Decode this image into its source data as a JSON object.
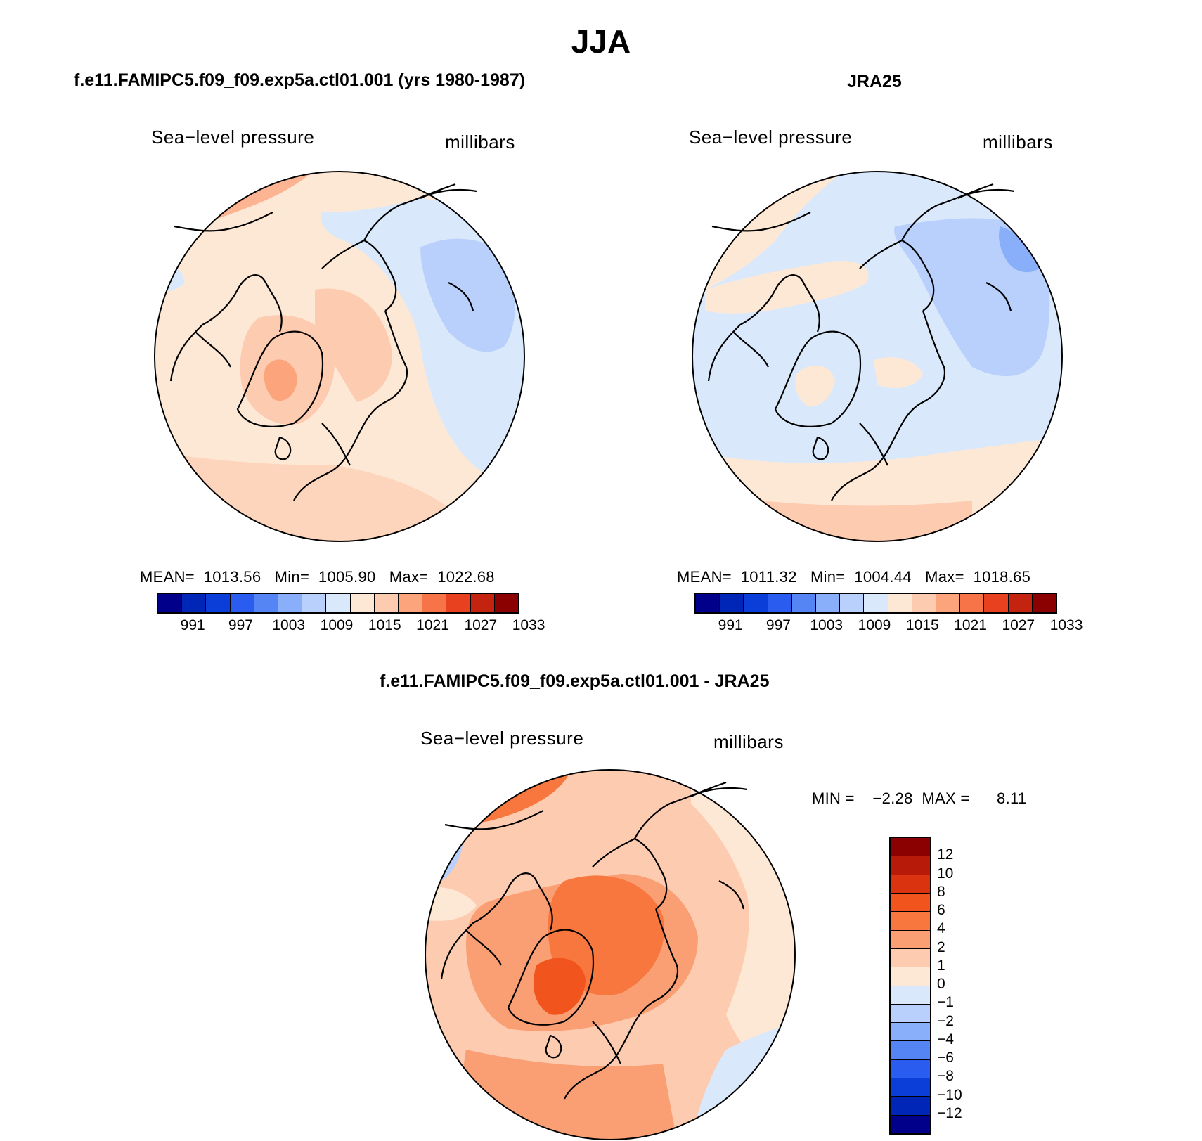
{
  "title": "JJA",
  "colors": {
    "abs_scale": [
      "#00008b",
      "#0026b8",
      "#0b3ed8",
      "#2a5cf0",
      "#5585f5",
      "#8aaffa",
      "#b8d0fb",
      "#d9e9fb",
      "#fde8d6",
      "#fdcbb0",
      "#fca57d",
      "#f77449",
      "#e8411f",
      "#c42310",
      "#8b0000"
    ],
    "diff_scale": [
      "#8b0000",
      "#b81a0a",
      "#d9340f",
      "#f2541e",
      "#f7773f",
      "#fa9f74",
      "#fdcbb0",
      "#fde8d6",
      "#d9e9fb",
      "#b8d0fb",
      "#8aaffa",
      "#5585f5",
      "#2a5cf0",
      "#0b3ed8",
      "#0026b8",
      "#00008b"
    ]
  },
  "panel_left": {
    "title": "f.e11.FAMIPC5.f09_f09.exp5a.ctl01.001 (yrs 1980-1987)",
    "variable": "Sea−level pressure",
    "units": "millibars",
    "stats": "MEAN=  1013.56   Min=  1005.90   Max=  1022.68",
    "colorbar_labels": [
      "991",
      "997",
      "1003",
      "1009",
      "1015",
      "1021",
      "1027",
      "1033"
    ]
  },
  "panel_right": {
    "title": "JRA25",
    "variable": "Sea−level pressure",
    "units": "millibars",
    "stats": "MEAN=  1011.32   Min=  1004.44   Max=  1018.65",
    "colorbar_labels": [
      "991",
      "997",
      "1003",
      "1009",
      "1015",
      "1021",
      "1027",
      "1033"
    ]
  },
  "panel_diff": {
    "title": "f.e11.FAMIPC5.f09_f09.exp5a.ctl01.001 - JRA25",
    "variable": "Sea−level pressure",
    "units": "millibars",
    "stats": "MIN =    −2.28  MAX =      8.11",
    "colorbar_labels": [
      "12",
      "10",
      "8",
      "6",
      "4",
      "2",
      "1",
      "0",
      "−1",
      "−2",
      "−4",
      "−6",
      "−8",
      "−10",
      "−12"
    ]
  }
}
